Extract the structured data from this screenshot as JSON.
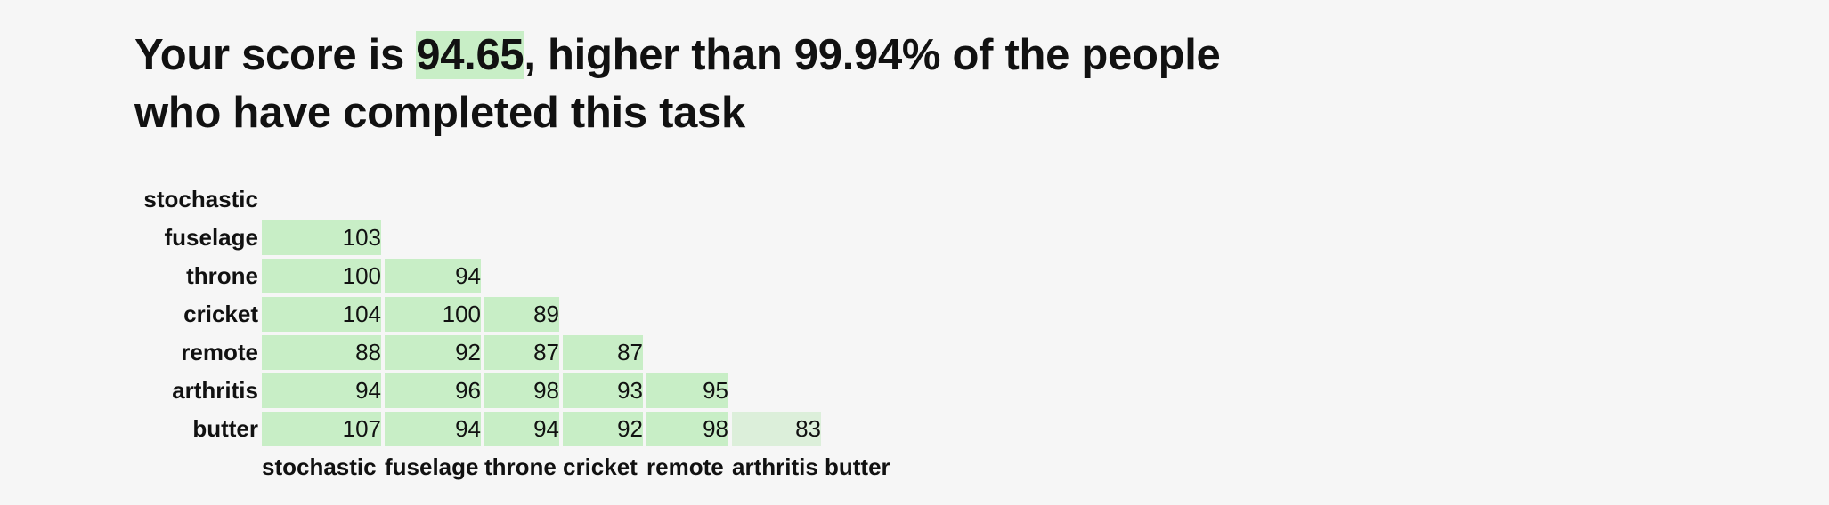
{
  "headline": {
    "prefix": "Your score is ",
    "score": "94.65",
    "middle": ", higher than 99.94% of the people",
    "line2": "who have completed this task"
  },
  "matrix": {
    "row_labels": [
      "stochastic",
      "fuselage",
      "throne",
      "cricket",
      "remote",
      "arthritis",
      "butter"
    ],
    "col_labels": [
      "stochastic",
      "fuselage",
      "throne",
      "cricket",
      "remote",
      "arthritis",
      "butter"
    ],
    "rows": [
      [],
      [
        "103"
      ],
      [
        "100",
        "94"
      ],
      [
        "104",
        "100",
        "89"
      ],
      [
        "88",
        "92",
        "87",
        "87"
      ],
      [
        "94",
        "96",
        "98",
        "93",
        "95"
      ],
      [
        "107",
        "94",
        "94",
        "92",
        "98",
        "83"
      ]
    ],
    "colors": {
      "cell": "#c8eec6",
      "cell_light": "#dcefda",
      "highlight": "#c8eec6"
    }
  }
}
